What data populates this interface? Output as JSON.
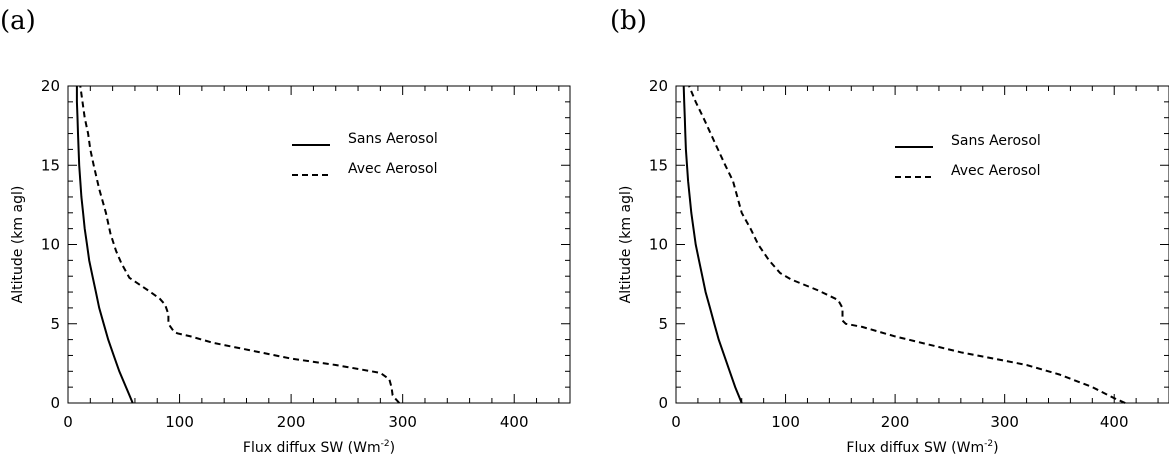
{
  "panels": [
    {
      "label": "(a)"
    },
    {
      "label": "(b)"
    }
  ],
  "chart_data": [
    {
      "type": "line",
      "xlabel": "Flux diffux SW (Wm",
      "xlabel_sup": "-2",
      "xlabel_end": ")",
      "ylabel": "Altitude (km agl)",
      "xlim": [
        0,
        450
      ],
      "ylim": [
        0,
        20
      ],
      "xticks": [
        0,
        100,
        200,
        300,
        400
      ],
      "yticks": [
        0,
        5,
        10,
        15,
        20
      ],
      "grid": false,
      "legend_position": "top-right",
      "series": [
        {
          "name": "Sans Aerosol",
          "style": "solid",
          "color": "#000000",
          "points": [
            [
              58,
              0
            ],
            [
              52,
              1
            ],
            [
              46,
              2
            ],
            [
              41,
              3
            ],
            [
              36,
              4
            ],
            [
              32,
              5
            ],
            [
              28,
              6
            ],
            [
              25,
              7
            ],
            [
              22,
              8
            ],
            [
              19,
              9
            ],
            [
              17,
              10
            ],
            [
              15,
              11
            ],
            [
              13.5,
              12
            ],
            [
              12,
              13
            ],
            [
              11,
              14
            ],
            [
              10,
              15
            ],
            [
              9.5,
              16
            ],
            [
              9,
              17
            ],
            [
              8.5,
              18
            ],
            [
              8,
              19
            ],
            [
              8,
              20
            ]
          ]
        },
        {
          "name": "Avec Aerosol",
          "style": "dashed",
          "color": "#000000",
          "points": [
            [
              297,
              0
            ],
            [
              293,
              0.3
            ],
            [
              291,
              0.5
            ],
            [
              290,
              1
            ],
            [
              288,
              1.5
            ],
            [
              280,
              1.9
            ],
            [
              240,
              2.4
            ],
            [
              200,
              2.8
            ],
            [
              165,
              3.3
            ],
            [
              130,
              3.8
            ],
            [
              110,
              4.2
            ],
            [
              98,
              4.4
            ],
            [
              95,
              4.5
            ],
            [
              90,
              5
            ],
            [
              90,
              5.6
            ],
            [
              87,
              6.2
            ],
            [
              82,
              6.6
            ],
            [
              72,
              7.1
            ],
            [
              55,
              7.9
            ],
            [
              48,
              8.8
            ],
            [
              43,
              9.6
            ],
            [
              38,
              10.7
            ],
            [
              34,
              12
            ],
            [
              28,
              13.5
            ],
            [
              23,
              15
            ],
            [
              20,
              16
            ],
            [
              18,
              17
            ],
            [
              15,
              18
            ],
            [
              13,
              19
            ],
            [
              11,
              20
            ]
          ]
        }
      ]
    },
    {
      "type": "line",
      "xlabel": "Flux diffux SW (Wm",
      "xlabel_sup": "-2",
      "xlabel_end": ")",
      "ylabel": "Altitude (km agl)",
      "xlim": [
        0,
        450
      ],
      "ylim": [
        0,
        20
      ],
      "xticks": [
        0,
        100,
        200,
        300,
        400
      ],
      "yticks": [
        0,
        5,
        10,
        15,
        20
      ],
      "grid": false,
      "legend_position": "top-right",
      "series": [
        {
          "name": "Sans Aerosol",
          "style": "solid",
          "color": "#000000",
          "points": [
            [
              60,
              0
            ],
            [
              54,
              1
            ],
            [
              49,
              2
            ],
            [
              44,
              3
            ],
            [
              39,
              4
            ],
            [
              35,
              5
            ],
            [
              31,
              6
            ],
            [
              27,
              7
            ],
            [
              24,
              8
            ],
            [
              21,
              9
            ],
            [
              18,
              10
            ],
            [
              16,
              11
            ],
            [
              14,
              12
            ],
            [
              12.5,
              13
            ],
            [
              11,
              14
            ],
            [
              10,
              15
            ],
            [
              9,
              16
            ],
            [
              8.5,
              17
            ],
            [
              8,
              18
            ],
            [
              7.5,
              19
            ],
            [
              7,
              20
            ]
          ]
        },
        {
          "name": "Avec Aerosol",
          "style": "dashed",
          "color": "#000000",
          "points": [
            [
              410,
              0
            ],
            [
              400,
              0.3
            ],
            [
              380,
              1
            ],
            [
              350,
              1.8
            ],
            [
              320,
              2.4
            ],
            [
              290,
              2.8
            ],
            [
              260,
              3.2
            ],
            [
              230,
              3.7
            ],
            [
              200,
              4.2
            ],
            [
              170,
              4.8
            ],
            [
              155,
              5
            ],
            [
              152,
              5.2
            ],
            [
              152,
              6
            ],
            [
              148,
              6.5
            ],
            [
              130,
              7.1
            ],
            [
              105,
              7.8
            ],
            [
              95,
              8.2
            ],
            [
              85,
              9
            ],
            [
              75,
              10
            ],
            [
              68,
              11
            ],
            [
              60,
              12
            ],
            [
              52,
              14
            ],
            [
              45,
              15
            ],
            [
              35,
              16.5
            ],
            [
              25,
              18
            ],
            [
              18,
              19
            ],
            [
              12,
              20
            ]
          ]
        }
      ]
    }
  ]
}
